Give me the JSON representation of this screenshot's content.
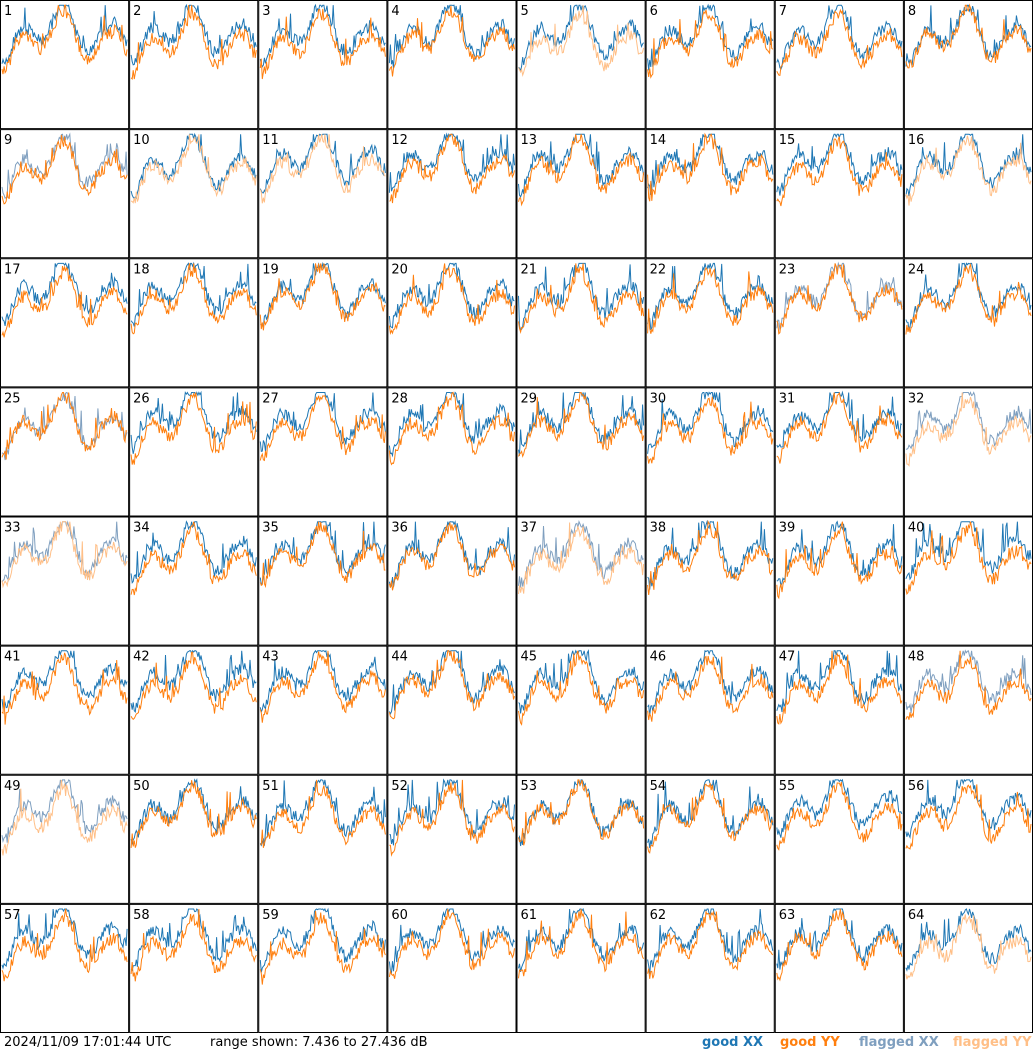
{
  "footer": {
    "timestamp": "2024/11/09 17:01:44 UTC",
    "range_text": "range shown: 7.436 to 27.436 dB"
  },
  "legend": [
    {
      "label": "good XX",
      "color": "#1f77b4"
    },
    {
      "label": "good YY",
      "color": "#ff7f0e"
    },
    {
      "label": "flagged XX",
      "color": "#7f9fbf"
    },
    {
      "label": "flagged YY",
      "color": "#ffbf87"
    }
  ],
  "chart_data": {
    "type": "line",
    "range_db": [
      7.436,
      27.436
    ],
    "series_names": [
      "good XX",
      "good YY",
      "flagged XX",
      "flagged YY"
    ],
    "panels": [
      {
        "id": 1,
        "xx": "good",
        "yy": "good"
      },
      {
        "id": 2,
        "xx": "good",
        "yy": "good"
      },
      {
        "id": 3,
        "xx": "good",
        "yy": "good"
      },
      {
        "id": 4,
        "xx": "good",
        "yy": "good"
      },
      {
        "id": 5,
        "xx": "good",
        "yy": "flagged"
      },
      {
        "id": 6,
        "xx": "good",
        "yy": "good"
      },
      {
        "id": 7,
        "xx": "good",
        "yy": "good"
      },
      {
        "id": 8,
        "xx": "good",
        "yy": "good"
      },
      {
        "id": 9,
        "xx": "flagged",
        "yy": "good"
      },
      {
        "id": 10,
        "xx": "good",
        "yy": "flagged"
      },
      {
        "id": 11,
        "xx": "good",
        "yy": "flagged"
      },
      {
        "id": 12,
        "xx": "good",
        "yy": "good"
      },
      {
        "id": 13,
        "xx": "good",
        "yy": "good"
      },
      {
        "id": 14,
        "xx": "good",
        "yy": "good"
      },
      {
        "id": 15,
        "xx": "good",
        "yy": "good"
      },
      {
        "id": 16,
        "xx": "good",
        "yy": "flagged"
      },
      {
        "id": 17,
        "xx": "good",
        "yy": "good"
      },
      {
        "id": 18,
        "xx": "good",
        "yy": "good"
      },
      {
        "id": 19,
        "xx": "good",
        "yy": "good"
      },
      {
        "id": 20,
        "xx": "good",
        "yy": "good"
      },
      {
        "id": 21,
        "xx": "good",
        "yy": "good"
      },
      {
        "id": 22,
        "xx": "good",
        "yy": "good"
      },
      {
        "id": 23,
        "xx": "flagged",
        "yy": "good"
      },
      {
        "id": 24,
        "xx": "good",
        "yy": "good"
      },
      {
        "id": 25,
        "xx": "flagged",
        "yy": "good"
      },
      {
        "id": 26,
        "xx": "good",
        "yy": "good"
      },
      {
        "id": 27,
        "xx": "good",
        "yy": "good"
      },
      {
        "id": 28,
        "xx": "good",
        "yy": "good"
      },
      {
        "id": 29,
        "xx": "good",
        "yy": "good"
      },
      {
        "id": 30,
        "xx": "good",
        "yy": "good"
      },
      {
        "id": 31,
        "xx": "good",
        "yy": "good"
      },
      {
        "id": 32,
        "xx": "flagged",
        "yy": "flagged"
      },
      {
        "id": 33,
        "xx": "flagged",
        "yy": "flagged"
      },
      {
        "id": 34,
        "xx": "good",
        "yy": "good"
      },
      {
        "id": 35,
        "xx": "good",
        "yy": "good"
      },
      {
        "id": 36,
        "xx": "good",
        "yy": "good"
      },
      {
        "id": 37,
        "xx": "flagged",
        "yy": "flagged"
      },
      {
        "id": 38,
        "xx": "good",
        "yy": "good"
      },
      {
        "id": 39,
        "xx": "good",
        "yy": "good"
      },
      {
        "id": 40,
        "xx": "good",
        "yy": "good"
      },
      {
        "id": 41,
        "xx": "good",
        "yy": "good"
      },
      {
        "id": 42,
        "xx": "good",
        "yy": "good"
      },
      {
        "id": 43,
        "xx": "good",
        "yy": "good"
      },
      {
        "id": 44,
        "xx": "good",
        "yy": "good"
      },
      {
        "id": 45,
        "xx": "good",
        "yy": "good"
      },
      {
        "id": 46,
        "xx": "good",
        "yy": "good"
      },
      {
        "id": 47,
        "xx": "good",
        "yy": "good"
      },
      {
        "id": 48,
        "xx": "flagged",
        "yy": "good"
      },
      {
        "id": 49,
        "xx": "flagged",
        "yy": "flagged"
      },
      {
        "id": 50,
        "xx": "good",
        "yy": "good"
      },
      {
        "id": 51,
        "xx": "good",
        "yy": "good"
      },
      {
        "id": 52,
        "xx": "good",
        "yy": "good"
      },
      {
        "id": 53,
        "xx": "good",
        "yy": "good"
      },
      {
        "id": 54,
        "xx": "good",
        "yy": "good"
      },
      {
        "id": 55,
        "xx": "good",
        "yy": "good"
      },
      {
        "id": 56,
        "xx": "good",
        "yy": "good"
      },
      {
        "id": 57,
        "xx": "good",
        "yy": "good"
      },
      {
        "id": 58,
        "xx": "good",
        "yy": "good"
      },
      {
        "id": 59,
        "xx": "good",
        "yy": "good"
      },
      {
        "id": 60,
        "xx": "good",
        "yy": "good"
      },
      {
        "id": 61,
        "xx": "good",
        "yy": "good"
      },
      {
        "id": 62,
        "xx": "good",
        "yy": "good"
      },
      {
        "id": 63,
        "xx": "good",
        "yy": "good"
      },
      {
        "id": 64,
        "xx": "good",
        "yy": "flagged"
      }
    ]
  }
}
